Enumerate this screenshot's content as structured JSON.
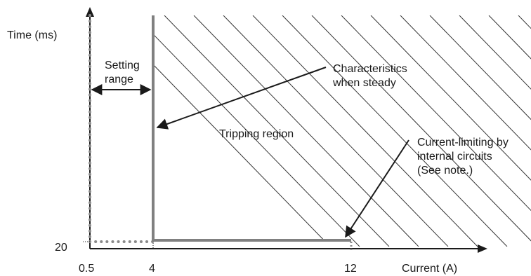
{
  "axes": {
    "y_label": "Time (ms)",
    "x_label": "Current (A)",
    "y_tick": "20",
    "x_ticks": [
      "0.5",
      "4",
      "12"
    ]
  },
  "annotations": {
    "setting_range": [
      "Setting",
      "range"
    ],
    "characteristics": [
      "Characteristics",
      "when steady"
    ],
    "tripping_region": "Tripping region",
    "current_limiting": [
      "Current-limiting by",
      "internal circuits",
      "(See note.)"
    ]
  },
  "colors": {
    "axis": "#1a1a1a",
    "curve": "#808080",
    "dotted": "#8a8a8a",
    "hatch": "#333333"
  }
}
